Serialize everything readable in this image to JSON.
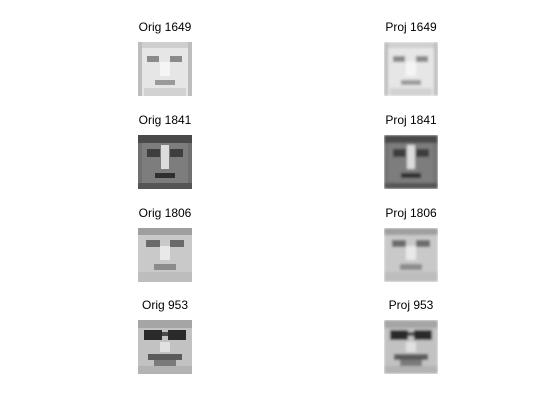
{
  "figure": {
    "panels": [
      {
        "title": "Orig 1649",
        "face": "f1649o"
      },
      {
        "title": "Proj 1649",
        "face": "f1649p"
      },
      {
        "title": "Orig 1841",
        "face": "f1841o"
      },
      {
        "title": "Proj 1841",
        "face": "f1841p"
      },
      {
        "title": "Orig 1806",
        "face": "f1806o"
      },
      {
        "title": "Proj 1806",
        "face": "f1806p"
      },
      {
        "title": "Orig 953",
        "face": "f953o"
      },
      {
        "title": "Proj 953",
        "face": "f953p"
      }
    ]
  }
}
